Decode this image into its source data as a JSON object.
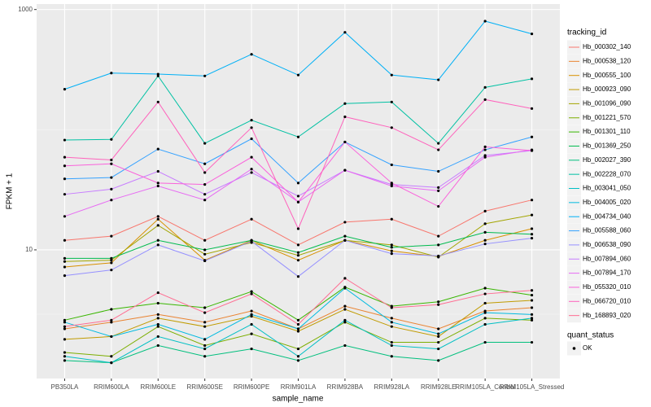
{
  "chart_data": {
    "type": "line",
    "log_y": true,
    "grid": true,
    "x_label": "sample_name",
    "y_label": "FPKM + 1",
    "categories": [
      "PB350LA",
      "RRIM600LA",
      "RRIM600LE",
      "RRIM600SE",
      "RRIM600PE",
      "RRIM901LA",
      "RRIM928BA",
      "RRIM928LA",
      "RRIM928LE",
      "RRIM105LA_Control",
      "RRIM105LA_Stressed"
    ],
    "ylim": [
      0.85,
      1110
    ],
    "yticks": [
      10,
      1000
    ],
    "legend_title": "tracking_id",
    "legend_position": "right",
    "point_legend": {
      "title": "quant_status",
      "levels": [
        "OK"
      ],
      "color": "#000000"
    },
    "series": [
      {
        "name": "Hb_000302_140",
        "color": "#F8766D",
        "values": [
          12,
          13,
          19,
          12,
          18,
          11,
          17,
          18,
          13,
          21,
          26
        ]
      },
      {
        "name": "Hb_000538_120",
        "color": "#EA8331",
        "values": [
          2.2,
          2.5,
          2.9,
          2.5,
          3.1,
          2.2,
          3.4,
          2.7,
          2.2,
          3.1,
          3.3
        ]
      },
      {
        "name": "Hb_000555_100",
        "color": "#D89000",
        "values": [
          7.2,
          7.8,
          18,
          8.2,
          12,
          8.2,
          12,
          9.8,
          8.8,
          12,
          15
        ]
      },
      {
        "name": "Hb_000923_090",
        "color": "#C09B00",
        "values": [
          1.8,
          1.9,
          2.7,
          2.3,
          2.8,
          2.1,
          3.2,
          2.3,
          1.9,
          3.6,
          3.8
        ]
      },
      {
        "name": "Hb_001096_090",
        "color": "#A3A500",
        "values": [
          8,
          8.2,
          16,
          9.2,
          11.5,
          9,
          12,
          11,
          8.7,
          16.5,
          19.5
        ]
      },
      {
        "name": "Hb_001221_570",
        "color": "#7CAE00",
        "values": [
          1.4,
          1.3,
          2.3,
          1.6,
          2.0,
          1.5,
          2.5,
          1.7,
          1.7,
          2.7,
          2.6
        ]
      },
      {
        "name": "Hb_001301_110",
        "color": "#39B600",
        "values": [
          2.6,
          3.2,
          3.6,
          3.3,
          4.5,
          2.6,
          4.9,
          3.4,
          3.7,
          4.8,
          4.2
        ]
      },
      {
        "name": "Hb_001369_250",
        "color": "#00BB4E",
        "values": [
          8.5,
          8.5,
          12,
          10,
          12,
          9.5,
          13,
          10.5,
          11,
          14,
          13.5
        ]
      },
      {
        "name": "Hb_002027_390",
        "color": "#00BF7D",
        "values": [
          1.2,
          1.15,
          1.6,
          1.3,
          1.5,
          1.2,
          1.6,
          1.3,
          1.2,
          1.7,
          1.7
        ]
      },
      {
        "name": "Hb_002228_070",
        "color": "#00C1A3",
        "values": [
          82,
          83,
          280,
          77,
          120,
          87,
          165,
          170,
          77,
          225,
          265
        ]
      },
      {
        "name": "Hb_003041_050",
        "color": "#00BFC4",
        "values": [
          1.3,
          1.15,
          1.9,
          1.5,
          2.4,
          1.3,
          2.6,
          1.6,
          1.5,
          2.4,
          2.7
        ]
      },
      {
        "name": "Hb_004005_020",
        "color": "#00BAE0",
        "values": [
          2.5,
          1.9,
          2.4,
          1.8,
          2.9,
          2.2,
          4.8,
          2.5,
          2.0,
          3.0,
          2.9
        ]
      },
      {
        "name": "Hb_004734_040",
        "color": "#00B0F6",
        "values": [
          217,
          296,
          290,
          280,
          424,
          285,
          646,
          285,
          260,
          800,
          627
        ]
      },
      {
        "name": "Hb_005588_060",
        "color": "#35A2FF",
        "values": [
          39,
          40,
          69,
          52,
          84,
          36,
          79,
          51,
          45,
          68,
          87
        ]
      },
      {
        "name": "Hb_006538_090",
        "color": "#9590FF",
        "values": [
          6.1,
          6.8,
          11,
          8.1,
          11.8,
          6,
          12,
          9.3,
          8.9,
          11.2,
          12.5
        ]
      },
      {
        "name": "Hb_007894_060",
        "color": "#C77CFF",
        "values": [
          29,
          32,
          45,
          29,
          44,
          28,
          46,
          35,
          33,
          61,
          67
        ]
      },
      {
        "name": "Hb_007894_170",
        "color": "#E76BF3",
        "values": [
          19,
          26,
          34,
          26,
          47,
          25,
          46,
          34,
          31,
          59,
          68
        ]
      },
      {
        "name": "Hb_055320_010",
        "color": "#FA62DB",
        "values": [
          50,
          52,
          36,
          35,
          59,
          25,
          79,
          36,
          23,
          72,
          67
        ]
      },
      {
        "name": "Hb_066720_010",
        "color": "#FF62BC",
        "values": [
          59,
          56,
          170,
          44,
          104,
          15,
          128,
          104,
          68,
          178,
          150
        ]
      },
      {
        "name": "Hb_168893_020",
        "color": "#FF6C91",
        "values": [
          2.3,
          2.6,
          4.4,
          3.0,
          4.3,
          2.4,
          5.8,
          3.3,
          3.5,
          4.3,
          4.6
        ]
      }
    ]
  }
}
